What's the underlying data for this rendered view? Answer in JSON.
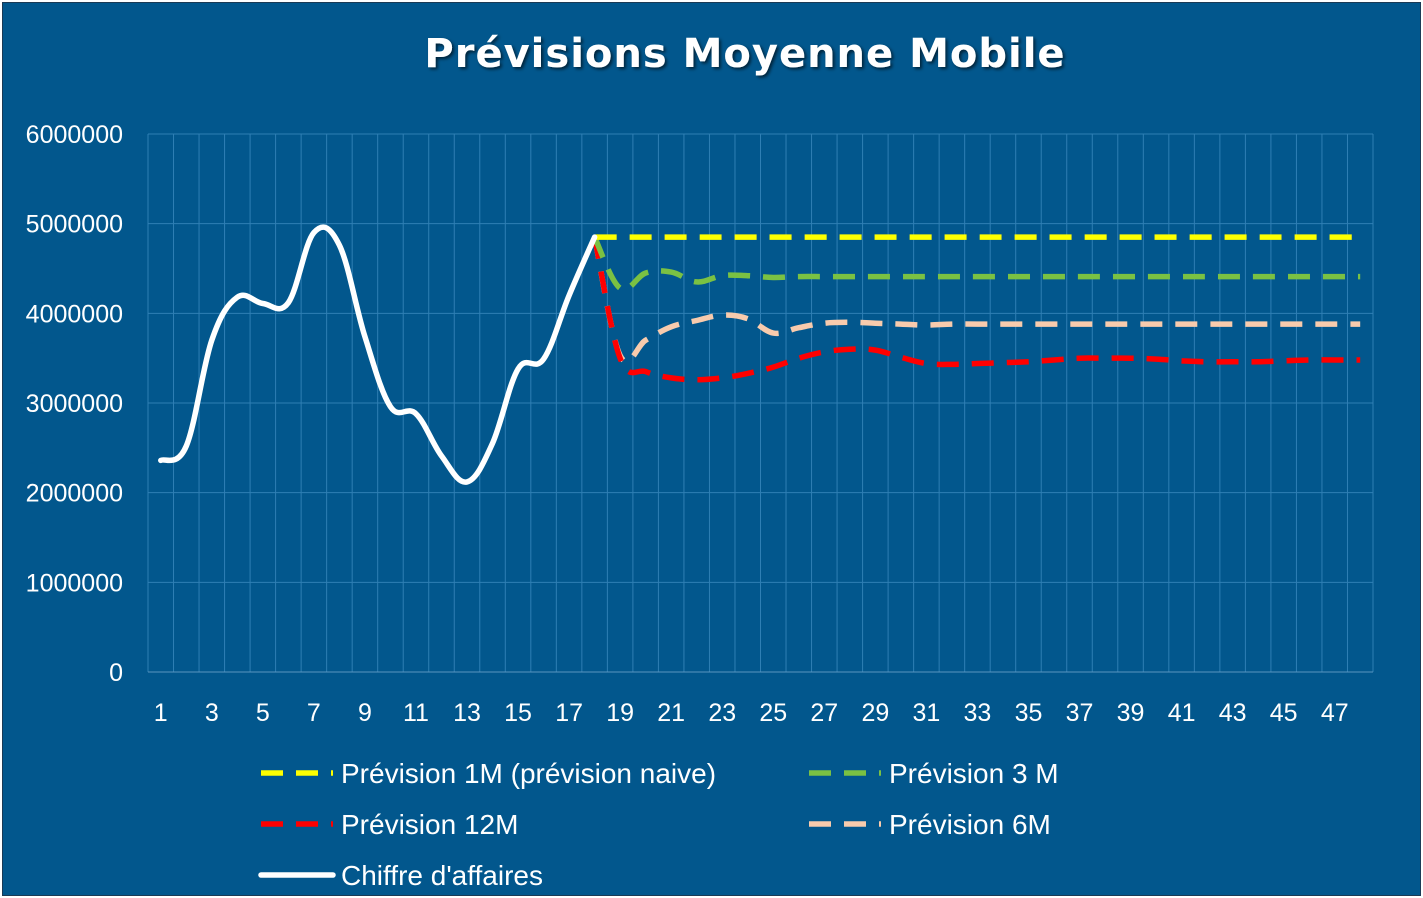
{
  "chart_data": {
    "type": "line",
    "title": "Prévisions Moyenne Mobile",
    "xlabel": "",
    "ylabel": "",
    "ylim": [
      0,
      6000000
    ],
    "yticks": [
      0,
      1000000,
      2000000,
      3000000,
      4000000,
      5000000,
      6000000
    ],
    "ytick_labels": [
      "0",
      "1000000",
      "2000000",
      "3000000",
      "4000000",
      "5000000",
      "6000000"
    ],
    "xlim": [
      1,
      48
    ],
    "xticks": [
      1,
      3,
      5,
      7,
      9,
      11,
      13,
      15,
      17,
      19,
      21,
      23,
      25,
      27,
      29,
      31,
      33,
      35,
      37,
      39,
      41,
      43,
      45,
      47
    ],
    "xtick_labels": [
      "1",
      "3",
      "5",
      "7",
      "9",
      "11",
      "13",
      "15",
      "17",
      "19",
      "21",
      "23",
      "25",
      "27",
      "29",
      "31",
      "33",
      "35",
      "37",
      "39",
      "41",
      "43",
      "45",
      "47"
    ],
    "grid": true,
    "legend_position": "bottom",
    "background_color": "#02578d",
    "series": [
      {
        "name": "Prévision  1M (prévision naive)",
        "color": "#ffff00",
        "style": "dashed",
        "x": [
          18,
          19,
          20,
          21,
          22,
          23,
          24,
          25,
          26,
          27,
          28,
          29,
          30,
          31,
          32,
          33,
          34,
          35,
          36,
          37,
          38,
          39,
          40,
          41,
          42,
          43,
          44,
          45,
          46,
          47,
          48
        ],
        "y": [
          4850000,
          4850000,
          4850000,
          4850000,
          4850000,
          4850000,
          4850000,
          4850000,
          4850000,
          4850000,
          4850000,
          4850000,
          4850000,
          4850000,
          4850000,
          4850000,
          4850000,
          4850000,
          4850000,
          4850000,
          4850000,
          4850000,
          4850000,
          4850000,
          4850000,
          4850000,
          4850000,
          4850000,
          4850000,
          4850000,
          4850000
        ]
      },
      {
        "name": "Prévision 3 M",
        "color": "#7ac143",
        "style": "dashed",
        "x": [
          18,
          19,
          20,
          21,
          22,
          23,
          24,
          25,
          26,
          27,
          28,
          29,
          30,
          31,
          32,
          33,
          34,
          35,
          36,
          37,
          38,
          39,
          40,
          41,
          42,
          43,
          44,
          45,
          46,
          47,
          48
        ],
        "y": [
          4850000,
          4280000,
          4450000,
          4460000,
          4350000,
          4420000,
          4420000,
          4400000,
          4410000,
          4410000,
          4410000,
          4410000,
          4410000,
          4410000,
          4410000,
          4410000,
          4410000,
          4410000,
          4410000,
          4410000,
          4410000,
          4410000,
          4410000,
          4410000,
          4410000,
          4410000,
          4410000,
          4410000,
          4410000,
          4410000,
          4410000
        ]
      },
      {
        "name": "Prévision 12M",
        "color": "#ff0000",
        "style": "dashed",
        "x": [
          18,
          19,
          20,
          21,
          22,
          23,
          24,
          25,
          26,
          27,
          28,
          29,
          30,
          31,
          32,
          33,
          34,
          35,
          36,
          37,
          38,
          39,
          40,
          41,
          42,
          43,
          44,
          45,
          46,
          47,
          48
        ],
        "y": [
          4850000,
          3500000,
          3350000,
          3280000,
          3260000,
          3280000,
          3330000,
          3400000,
          3500000,
          3570000,
          3600000,
          3590000,
          3510000,
          3440000,
          3430000,
          3440000,
          3450000,
          3460000,
          3480000,
          3500000,
          3500000,
          3500000,
          3490000,
          3470000,
          3460000,
          3460000,
          3460000,
          3470000,
          3480000,
          3480000,
          3480000
        ]
      },
      {
        "name": "Prévision 6M",
        "color": "#f8cbad",
        "style": "dashed",
        "x": [
          18,
          19,
          20,
          21,
          22,
          23,
          24,
          25,
          26,
          27,
          28,
          29,
          30,
          31,
          32,
          33,
          34,
          35,
          36,
          37,
          38,
          39,
          40,
          41,
          42,
          43,
          44,
          45,
          46,
          47,
          48
        ],
        "y": [
          4850000,
          3530000,
          3700000,
          3850000,
          3920000,
          3980000,
          3940000,
          3780000,
          3840000,
          3890000,
          3900000,
          3890000,
          3880000,
          3870000,
          3880000,
          3880000,
          3880000,
          3880000,
          3880000,
          3880000,
          3880000,
          3880000,
          3880000,
          3880000,
          3880000,
          3880000,
          3880000,
          3880000,
          3880000,
          3880000,
          3880000
        ]
      },
      {
        "name": "Chiffre d'affaires",
        "color": "#ffffff",
        "style": "solid",
        "x": [
          1,
          2,
          3,
          4,
          5,
          6,
          7,
          8,
          9,
          10,
          11,
          12,
          13,
          14,
          15,
          16,
          17,
          18
        ],
        "y": [
          2360000,
          2520000,
          3700000,
          4180000,
          4110000,
          4120000,
          4900000,
          4760000,
          3740000,
          2960000,
          2880000,
          2410000,
          2120000,
          2550000,
          3380000,
          3490000,
          4200000,
          4850000
        ]
      }
    ],
    "legend_order": [
      0,
      1,
      2,
      3,
      4
    ]
  }
}
